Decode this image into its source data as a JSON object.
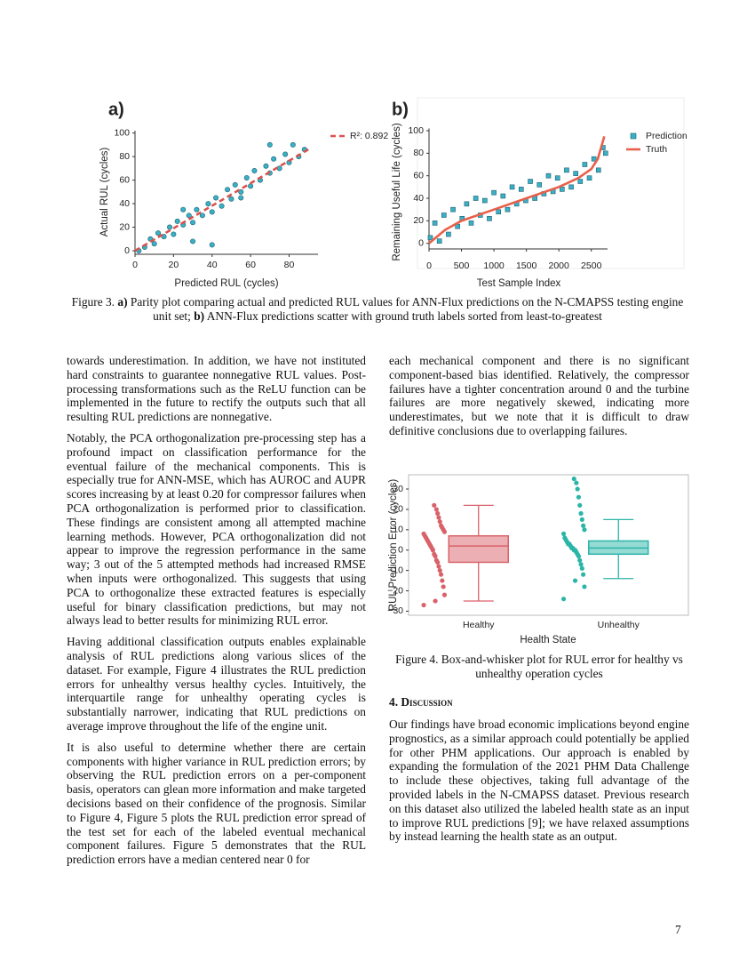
{
  "chart_data": [
    {
      "type": "scatter",
      "title": "a)",
      "xlabel": "Predicted RUL (cycles)",
      "ylabel": "Actual RUL (cycles)",
      "xlim": [
        0,
        95
      ],
      "ylim": [
        -3,
        102
      ],
      "xticks": [
        0,
        20,
        40,
        60,
        80
      ],
      "yticks": [
        0,
        20,
        40,
        60,
        80,
        100
      ],
      "series": [
        {
          "mode": "markers",
          "marker": "circle",
          "color": "#3ab0c4",
          "x": [
            2,
            5,
            8,
            10,
            12,
            15,
            18,
            20,
            22,
            25,
            28,
            30,
            32,
            35,
            38,
            40,
            42,
            45,
            48,
            50,
            52,
            55,
            58,
            60,
            62,
            65,
            68,
            70,
            72,
            75,
            78,
            80,
            82,
            85,
            88,
            30,
            40,
            25,
            55,
            70
          ],
          "values": [
            0,
            3,
            10,
            6,
            15,
            12,
            20,
            14,
            25,
            22,
            30,
            24,
            35,
            30,
            40,
            33,
            45,
            38,
            52,
            44,
            56,
            50,
            62,
            55,
            68,
            60,
            72,
            66,
            78,
            70,
            82,
            75,
            90,
            80,
            86,
            8,
            5,
            35,
            45,
            90
          ]
        },
        {
          "name": "R²: 0.892",
          "mode": "line",
          "dash": true,
          "color": "#d9534f",
          "x": [
            0,
            90
          ],
          "values": [
            0,
            86
          ]
        }
      ]
    },
    {
      "type": "scatter",
      "title": "b)",
      "xlabel": "Test Sample Index",
      "ylabel": "Remaining Useful Life (cycles)",
      "xlim": [
        0,
        2750
      ],
      "ylim": [
        -5,
        102
      ],
      "xticks": [
        0,
        500,
        1000,
        1500,
        2000,
        2500
      ],
      "yticks": [
        0,
        20,
        40,
        60,
        80,
        100
      ],
      "series": [
        {
          "name": "Prediction",
          "mode": "markers",
          "marker": "square",
          "color": "#3ab0c4",
          "x": [
            20,
            90,
            160,
            230,
            300,
            370,
            440,
            510,
            580,
            650,
            720,
            790,
            860,
            930,
            1000,
            1070,
            1140,
            1210,
            1280,
            1350,
            1420,
            1490,
            1560,
            1630,
            1700,
            1770,
            1840,
            1910,
            1980,
            2050,
            2120,
            2190,
            2260,
            2330,
            2400,
            2470,
            2540,
            2610,
            2680,
            2720
          ],
          "values": [
            5,
            18,
            2,
            25,
            8,
            30,
            15,
            22,
            35,
            18,
            40,
            25,
            38,
            22,
            45,
            28,
            42,
            30,
            50,
            35,
            48,
            38,
            55,
            40,
            52,
            44,
            60,
            46,
            58,
            48,
            65,
            50,
            62,
            55,
            70,
            58,
            75,
            65,
            85,
            80
          ]
        },
        {
          "name": "Truth",
          "mode": "line",
          "color": "#e8604c",
          "x": [
            0,
            250,
            500,
            1000,
            1500,
            2000,
            2300,
            2500,
            2600,
            2700
          ],
          "values": [
            0,
            12,
            20,
            30,
            40,
            50,
            58,
            66,
            75,
            95
          ]
        }
      ]
    },
    {
      "type": "box",
      "xlabel": "Health State",
      "ylabel": "RUL Prediction Error (cycles)",
      "categories": [
        "Healthy",
        "Unhealthy"
      ],
      "colors": [
        "#d9626a",
        "#2bb5a8"
      ],
      "ylim": [
        -32,
        37
      ],
      "yticks": [
        {
          "value": -30,
          "label": "−30"
        },
        {
          "value": -20,
          "label": "−20"
        },
        {
          "value": -10,
          "label": "−10"
        },
        0,
        10,
        20,
        30
      ],
      "boxes": [
        {
          "whislo": -25,
          "q1": -6,
          "med": 2,
          "q3": 7,
          "whishi": 22
        },
        {
          "whislo": -14,
          "q1": -2,
          "med": 1,
          "q3": 4.5,
          "whishi": 15
        }
      ],
      "points": [
        [
          -27,
          -22,
          -18,
          -15,
          -12,
          -10,
          -8,
          -6,
          -5,
          -3,
          -2,
          0,
          1,
          2,
          3,
          4,
          5,
          6,
          7,
          8,
          9,
          10,
          11,
          12,
          14,
          16,
          18,
          20,
          -25,
          22
        ],
        [
          -24,
          -18,
          -12,
          -9,
          -7,
          -5,
          -3,
          -2,
          -1,
          0,
          0,
          1,
          1,
          2,
          3,
          3,
          4,
          5,
          6,
          8,
          10,
          12,
          15,
          18,
          22,
          26,
          30,
          33,
          -15,
          35
        ]
      ]
    }
  ],
  "figure3_caption": [
    "Figure 3. ",
    "a)",
    " Parity plot comparing actual and predicted RUL values for ANN-Flux predictions on the N-CMAPSS testing engine unit set; ",
    "b)",
    " ANN-Flux predictions scatter with ground truth labels sorted from least-to-greatest"
  ],
  "left_column": [
    "towards underestimation. In addition, we have not instituted hard constraints to guarantee nonnegative RUL values. Post-processing transformations such as the ReLU function can be implemented in the future to rectify the outputs such that all resulting RUL predictions are nonnegative.",
    "Notably, the PCA orthogonalization pre-processing step has a profound impact on classification performance for the eventual failure of the mechanical components. This is especially true for ANN-MSE, which has AUROC and AUPR scores increasing by at least 0.20 for compressor failures when PCA orthogonalization is performed prior to classification. These findings are consistent among all attempted machine learning methods. However, PCA orthogonalization did not appear to improve the regression performance in the same way; 3 out of the 5 attempted methods had increased RMSE when inputs were orthogonalized. This suggests that using PCA to orthogonalize these extracted features is especially useful for binary classification predictions, but may not always lead to better results for minimizing RUL error.",
    "Having additional classification outputs enables explainable analysis of RUL predictions along various slices of the dataset. For example, Figure 4 illustrates the RUL prediction errors for unhealthy versus healthy cycles. Intuitively, the interquartile range for unhealthy operating cycles is substantially narrower, indicating that RUL predictions on average improve throughout the life of the engine unit.",
    "It is also useful to determine whether there are certain components with higher variance in RUL prediction errors; by observing the RUL prediction errors on a per-component basis, operators can glean more information and make targeted decisions based on their confidence of the prognosis. Similar to Figure 4, Figure 5 plots the RUL prediction error spread of the test set for each of the labeled eventual mechanical component failures. Figure 5 demonstrates that the RUL prediction errors have a median centered near 0 for"
  ],
  "right_column_top": "each mechanical component and there is no significant component-based bias identified. Relatively, the compressor failures have a tighter concentration around 0 and the turbine failures are more negatively skewed, indicating more underestimates, but we note that it is difficult to draw definitive conclusions due to overlapping failures.",
  "figure4_caption": "Figure 4. Box-and-whisker plot for RUL error for healthy vs unhealthy operation cycles",
  "section_heading": "4. Discussion",
  "discussion": "Our findings have broad economic implications beyond engine prognostics, as a similar approach could potentially be applied for other PHM applications. Our approach is enabled by expanding the formulation of the 2021 PHM Data Challenge to include these objectives, taking full advantage of the provided labels in the N-CMAPSS dataset. Previous research on this dataset also utilized the labeled health state as an input to improve RUL predictions [9]; we have relaxed assumptions by instead learning the health state as an output.",
  "page_number": "7"
}
